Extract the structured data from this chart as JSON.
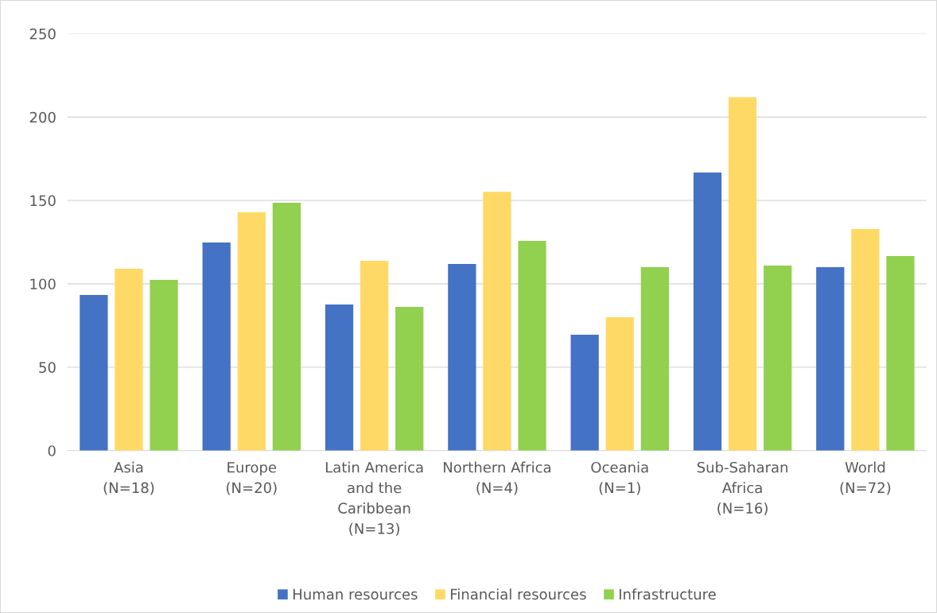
{
  "chart_data": {
    "type": "bar",
    "categories": [
      "Asia\n(N=18)",
      "Europe\n(N=20)",
      "Latin America\nand the\nCaribbean\n(N=13)",
      "Northern Africa\n(N=4)",
      "Oceania\n(N=1)",
      "Sub-Saharan\nAfrica\n(N=16)",
      "World\n(N=72)"
    ],
    "series": [
      {
        "name": "Human resources",
        "color": "#4472c4",
        "values": [
          93.3,
          124.8,
          87.6,
          111.9,
          69.5,
          166.7,
          110
        ]
      },
      {
        "name": "Financial resources",
        "color": "#ffd966",
        "values": [
          109,
          142.9,
          113.8,
          155.2,
          80,
          211.9,
          132.9
        ]
      },
      {
        "name": "Infrastructure",
        "color": "#92d050",
        "values": [
          102.4,
          148.6,
          86.2,
          125.7,
          110,
          111,
          116.7
        ]
      }
    ],
    "ylim": [
      0,
      250
    ],
    "yticks": [
      0,
      50,
      100,
      150,
      200,
      250
    ],
    "grid": "y",
    "legend": "bottom"
  }
}
